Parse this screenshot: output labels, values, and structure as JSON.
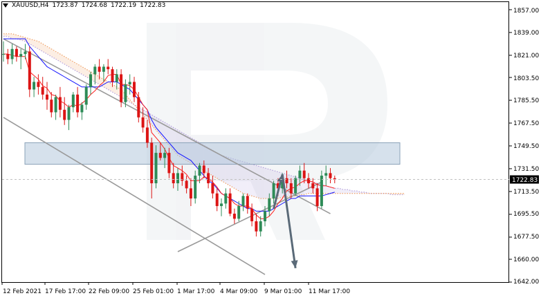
{
  "header": {
    "symbol_timeframe": "XAUUSD,H4",
    "open": "1723.87",
    "high": "1724.68",
    "low": "1722.19",
    "close": "1722.83"
  },
  "price_axis": {
    "labels": [
      "1857.00",
      "1839.00",
      "1821.00",
      "1803.50",
      "1785.50",
      "1767.50",
      "1749.50",
      "1731.50",
      "1713.50",
      "1695.50",
      "1677.50",
      "1660.00",
      "1642.00"
    ],
    "current_price": "1722.83",
    "current_price_bg": "#000000"
  },
  "time_axis": {
    "labels": [
      "12 Feb 2021",
      "17 Feb 17:00",
      "22 Feb 09:00",
      "25 Feb 01:00",
      "1 Mar 17:00",
      "4 Mar 09:00",
      "9 Mar 01:00",
      "11 Mar 17:00"
    ]
  },
  "colors": {
    "bull": "#2e8b57",
    "bear": "#dc1414",
    "kijun": "#1414ff",
    "tenkan": "#ff1e1e",
    "cloud_a": "#b4a0dc",
    "cloud_b": "#f0a064",
    "lines": "#9a9a9a",
    "arrow": "#5a6a78",
    "zone": "#b4c8dc"
  },
  "chart_data": {
    "type": "candlestick",
    "symbol": "XAUUSD",
    "timeframe": "H4",
    "ylim": [
      1642.0,
      1863.0
    ],
    "candles": [
      [
        1822,
        1832,
        1816,
        1822
      ],
      [
        1822,
        1826,
        1814,
        1818
      ],
      [
        1818,
        1830,
        1814,
        1826
      ],
      [
        1826,
        1828,
        1816,
        1820
      ],
      [
        1820,
        1826,
        1810,
        1822
      ],
      [
        1822,
        1830,
        1818,
        1824
      ],
      [
        1824,
        1828,
        1788,
        1794
      ],
      [
        1794,
        1804,
        1788,
        1800
      ],
      [
        1800,
        1806,
        1790,
        1796
      ],
      [
        1796,
        1804,
        1786,
        1790
      ],
      [
        1790,
        1800,
        1778,
        1786
      ],
      [
        1786,
        1792,
        1772,
        1776
      ],
      [
        1776,
        1790,
        1770,
        1788
      ],
      [
        1788,
        1796,
        1772,
        1778
      ],
      [
        1778,
        1788,
        1766,
        1770
      ],
      [
        1770,
        1782,
        1762,
        1780
      ],
      [
        1780,
        1792,
        1776,
        1790
      ],
      [
        1790,
        1796,
        1772,
        1776
      ],
      [
        1776,
        1784,
        1770,
        1782
      ],
      [
        1782,
        1798,
        1778,
        1796
      ],
      [
        1796,
        1808,
        1790,
        1806
      ],
      [
        1806,
        1814,
        1798,
        1812
      ],
      [
        1812,
        1818,
        1802,
        1808
      ],
      [
        1808,
        1814,
        1800,
        1812
      ],
      [
        1812,
        1818,
        1806,
        1810
      ],
      [
        1810,
        1812,
        1796,
        1800
      ],
      [
        1800,
        1810,
        1794,
        1806
      ],
      [
        1806,
        1810,
        1780,
        1784
      ],
      [
        1784,
        1802,
        1780,
        1798
      ],
      [
        1798,
        1806,
        1790,
        1800
      ],
      [
        1800,
        1804,
        1784,
        1788
      ],
      [
        1788,
        1792,
        1768,
        1772
      ],
      [
        1772,
        1780,
        1760,
        1764
      ],
      [
        1764,
        1770,
        1748,
        1752
      ],
      [
        1752,
        1756,
        1708,
        1720
      ],
      [
        1720,
        1750,
        1716,
        1744
      ],
      [
        1744,
        1752,
        1738,
        1740
      ],
      [
        1740,
        1748,
        1732,
        1744
      ],
      [
        1744,
        1748,
        1724,
        1728
      ],
      [
        1728,
        1736,
        1716,
        1720
      ],
      [
        1720,
        1732,
        1714,
        1728
      ],
      [
        1728,
        1734,
        1718,
        1722
      ],
      [
        1722,
        1726,
        1712,
        1716
      ],
      [
        1716,
        1724,
        1702,
        1708
      ],
      [
        1708,
        1730,
        1704,
        1726
      ],
      [
        1726,
        1736,
        1720,
        1734
      ],
      [
        1734,
        1738,
        1724,
        1728
      ],
      [
        1728,
        1732,
        1716,
        1720
      ],
      [
        1720,
        1726,
        1708,
        1712
      ],
      [
        1712,
        1716,
        1698,
        1702
      ],
      [
        1702,
        1708,
        1694,
        1704
      ],
      [
        1704,
        1716,
        1700,
        1712
      ],
      [
        1712,
        1716,
        1694,
        1696
      ],
      [
        1696,
        1700,
        1688,
        1692
      ],
      [
        1692,
        1706,
        1690,
        1702
      ],
      [
        1702,
        1712,
        1698,
        1710
      ],
      [
        1710,
        1712,
        1696,
        1700
      ],
      [
        1700,
        1704,
        1686,
        1690
      ],
      [
        1690,
        1696,
        1678,
        1682
      ],
      [
        1682,
        1694,
        1678,
        1690
      ],
      [
        1690,
        1702,
        1686,
        1698
      ],
      [
        1698,
        1712,
        1694,
        1708
      ],
      [
        1708,
        1722,
        1704,
        1720
      ],
      [
        1720,
        1724,
        1710,
        1716
      ],
      [
        1716,
        1728,
        1712,
        1724
      ],
      [
        1724,
        1730,
        1716,
        1720
      ],
      [
        1720,
        1724,
        1708,
        1712
      ],
      [
        1712,
        1726,
        1710,
        1724
      ],
      [
        1724,
        1734,
        1718,
        1730
      ],
      [
        1730,
        1736,
        1720,
        1724
      ],
      [
        1724,
        1728,
        1716,
        1720
      ],
      [
        1720,
        1724,
        1712,
        1716
      ],
      [
        1716,
        1720,
        1698,
        1702
      ],
      [
        1702,
        1730,
        1700,
        1726
      ],
      [
        1726,
        1734,
        1718,
        1728
      ],
      [
        1728,
        1732,
        1720,
        1724
      ],
      [
        1724,
        1726,
        1720,
        1723
      ]
    ],
    "tenkan_sen": [
      1822,
      1822,
      1821,
      1820,
      1820,
      1820,
      1808,
      1805,
      1802,
      1797,
      1795,
      1790,
      1789,
      1785,
      1783,
      1780,
      1782,
      1781,
      1783,
      1786,
      1790,
      1793,
      1797,
      1800,
      1805,
      1806,
      1806,
      1798,
      1798,
      1797,
      1794,
      1788,
      1782,
      1778,
      1760,
      1756,
      1752,
      1747,
      1740,
      1734,
      1732,
      1730,
      1727,
      1722,
      1722,
      1722,
      1725,
      1724,
      1721,
      1717,
      1712,
      1710,
      1708,
      1704,
      1702,
      1702,
      1702,
      1700,
      1695,
      1692,
      1692,
      1694,
      1698,
      1704,
      1708,
      1714,
      1716,
      1717,
      1720,
      1722,
      1722,
      1721,
      1719,
      1718,
      1718,
      1717,
      1716
    ],
    "kijun_sen": [
      1834,
      1834,
      1834,
      1834,
      1834,
      1834,
      1828,
      1824,
      1820,
      1816,
      1812,
      1810,
      1808,
      1806,
      1804,
      1802,
      1800,
      1798,
      1796,
      1796,
      1796,
      1796,
      1796,
      1798,
      1800,
      1800,
      1800,
      1798,
      1796,
      1794,
      1790,
      1786,
      1782,
      1778,
      1770,
      1764,
      1760,
      1756,
      1752,
      1748,
      1744,
      1742,
      1740,
      1738,
      1734,
      1730,
      1726,
      1722,
      1720,
      1716,
      1712,
      1710,
      1708,
      1706,
      1704,
      1702,
      1700,
      1700,
      1698,
      1698,
      1698,
      1698,
      1700,
      1702,
      1704,
      1706,
      1708,
      1708,
      1710,
      1710,
      1710,
      1710,
      1710,
      1710,
      1711,
      1712,
      1713
    ],
    "senkou_a": [
      1836,
      1836,
      1834,
      1834,
      1833,
      1832,
      1830,
      1828,
      1826,
      1824,
      1822,
      1820,
      1818,
      1816,
      1814,
      1812,
      1810,
      1808,
      1806,
      1804,
      1802,
      1800,
      1798,
      1796,
      1794,
      1792,
      1790,
      1788,
      1786,
      1784,
      1782,
      1780,
      1778,
      1776,
      1774,
      1772,
      1770,
      1768,
      1766,
      1764,
      1762,
      1760,
      1758,
      1756,
      1754,
      1752,
      1750,
      1748,
      1746,
      1744,
      1742,
      1741,
      1740,
      1739,
      1738,
      1737,
      1736,
      1735,
      1734,
      1733,
      1732,
      1731,
      1730,
      1729,
      1728,
      1727,
      1726,
      1725,
      1724,
      1723,
      1722,
      1721,
      1720,
      1719,
      1718,
      1717,
      1716,
      1716,
      1715,
      1715,
      1714,
      1714,
      1713,
      1713,
      1712,
      1712,
      1712,
      1712,
      1712,
      1711,
      1711,
      1711,
      1711
    ],
    "senkou_b": [
      1838,
      1838,
      1838,
      1837,
      1836,
      1835,
      1834,
      1833,
      1832,
      1830,
      1828,
      1826,
      1824,
      1822,
      1820,
      1818,
      1816,
      1814,
      1812,
      1810,
      1808,
      1806,
      1804,
      1802,
      1800,
      1798,
      1796,
      1794,
      1790,
      1786,
      1782,
      1778,
      1774,
      1770,
      1766,
      1762,
      1758,
      1754,
      1750,
      1746,
      1742,
      1740,
      1738,
      1736,
      1734,
      1732,
      1730,
      1728,
      1726,
      1724,
      1722,
      1720,
      1718,
      1716,
      1714,
      1712,
      1711,
      1710,
      1709,
      1708,
      1708,
      1708,
      1708,
      1708,
      1709,
      1709,
      1710,
      1710,
      1711,
      1711,
      1712,
      1712,
      1712,
      1712,
      1712,
      1712,
      1712,
      1712,
      1712,
      1712,
      1712,
      1712,
      1712,
      1712,
      1712,
      1712,
      1712,
      1712,
      1712,
      1712,
      1712,
      1712,
      1712
    ],
    "channel_upper": [
      [
        0,
        1834
      ],
      [
        75,
        1696
      ]
    ],
    "channel_lower": [
      [
        0,
        1772
      ],
      [
        60,
        1648
      ]
    ],
    "support_line": [
      [
        40,
        1666
      ],
      [
        73,
        1721
      ]
    ],
    "resistance_zone": {
      "from": 1735,
      "to": 1752
    },
    "forecast_arrow": [
      [
        62,
        1700
      ],
      [
        64,
        1727
      ],
      [
        67,
        1653
      ]
    ]
  }
}
